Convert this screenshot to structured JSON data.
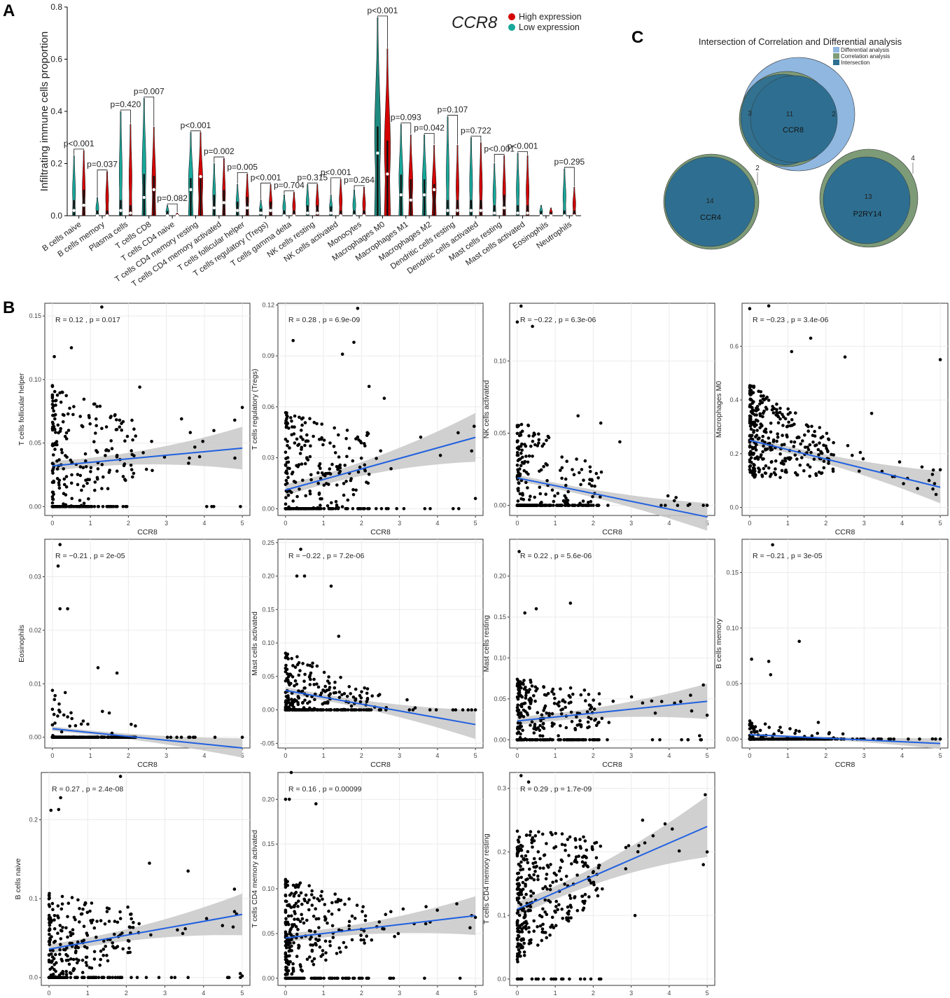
{
  "panels": {
    "a": "A",
    "b": "B",
    "c": "C"
  },
  "colors": {
    "high": "#d40000",
    "low": "#17a89a",
    "low_mo": "#1f8a80",
    "fit": "#2060e0",
    "band": "#c8c8c8",
    "venn_green": "#7d9b77",
    "venn_blue": "#2e6f91",
    "venn_light": "#8fb7e0"
  },
  "chart_data": [
    {
      "id": "violin",
      "type": "violin",
      "ylabel": "Infiltrating immune cells proportion",
      "ylim": [
        0,
        0.8
      ],
      "yticks": [
        0.0,
        0.2,
        0.4,
        0.6,
        0.8
      ],
      "ytick_labels": [
        "0.0",
        "0.2",
        "0.4",
        "0.6",
        "0.8"
      ],
      "legend": {
        "gene": "CCR8",
        "high": "High expression",
        "low": "Low expression",
        "position": "top-right"
      },
      "categories": [
        "B cells naive",
        "B cells memory",
        "Plasma cells",
        "T cells CD8",
        "T cells CD4 naive",
        "T cells CD4 memory resting",
        "T cells CD4 memory activated",
        "T cells follicular helper",
        "T cells regulatory (Tregs)",
        "T cells gamma delta",
        "NK cells resting",
        "NK cells activated",
        "Monocytes",
        "Macrophages M0",
        "Macrophages M1",
        "Macrophages M2",
        "Dendritic cells resting",
        "Dendritic cells activated",
        "Mast cells resting",
        "Mast cells activated",
        "Eosinophils",
        "Neutrophils"
      ],
      "pvalues": [
        "p<0.001",
        "p=0.037",
        "p=0.420",
        "p=0.007",
        "p=0.082",
        "p<0.001",
        "p=0.002",
        "p=0.005",
        "p<0.001",
        "p=0.704",
        "p=0.315",
        "p<0.001",
        "p=0.264",
        "p<0.001",
        "p=0.093",
        "p=0.042",
        "p=0.107",
        "p=0.722",
        "p<0.001",
        "p<0.001",
        "",
        "p=0.295"
      ],
      "low_max": [
        0.23,
        0.07,
        0.4,
        0.45,
        0.04,
        0.32,
        0.2,
        0.12,
        0.06,
        0.08,
        0.12,
        0.08,
        0.1,
        0.76,
        0.35,
        0.31,
        0.38,
        0.3,
        0.2,
        0.24,
        0.04,
        0.18
      ],
      "high_max": [
        0.25,
        0.17,
        0.35,
        0.34,
        0.01,
        0.32,
        0.22,
        0.16,
        0.12,
        0.09,
        0.12,
        0.14,
        0.11,
        0.64,
        0.31,
        0.27,
        0.27,
        0.28,
        0.23,
        0.23,
        0.03,
        0.11
      ],
      "low_median": [
        0.02,
        0.0,
        0.02,
        0.07,
        0.0,
        0.1,
        0.03,
        0.02,
        0.01,
        0.0,
        0.01,
        0.01,
        0.0,
        0.24,
        0.08,
        0.08,
        0.02,
        0.02,
        0.01,
        0.01,
        0.0,
        0.0
      ],
      "high_median": [
        0.04,
        0.0,
        0.01,
        0.1,
        0.0,
        0.15,
        0.05,
        0.03,
        0.02,
        0.0,
        0.01,
        0.0,
        0.0,
        0.16,
        0.06,
        0.1,
        0.02,
        0.02,
        0.03,
        0.01,
        0.0,
        0.0
      ]
    },
    {
      "id": "scatter-tfh",
      "type": "scatter",
      "xlabel": "CCR8",
      "ylabel": "T cells follicular helper",
      "stat": "R = 0.12 , p = 0.017",
      "xlim": [
        -0.2,
        5.2
      ],
      "ylim": [
        -0.007,
        0.16
      ],
      "xticks": [
        0,
        1,
        2,
        3,
        4,
        5
      ],
      "xtick_labels": [
        "0",
        "1",
        "2",
        "3",
        "4",
        "5"
      ],
      "yticks": [
        0,
        0.05,
        0.1,
        0.15
      ],
      "ytick_labels": [
        "0.00",
        "0.05",
        "0.10",
        "0.15"
      ],
      "fit": {
        "y0": 0.032,
        "y1": 0.046,
        "se": 0.014
      },
      "n": 320,
      "zero_frac": 0.3,
      "y_scale": 0.048,
      "extra_points": [
        [
          1.3,
          0.157
        ],
        [
          0.5,
          0.125
        ],
        [
          0.05,
          0.118
        ],
        [
          2.3,
          0.094
        ],
        [
          3.4,
          0.069
        ],
        [
          4.8,
          0.068
        ],
        [
          5.0,
          0.078
        ],
        [
          4.95,
          0.0
        ]
      ]
    },
    {
      "id": "scatter-tregs",
      "type": "scatter",
      "xlabel": "CCR8",
      "ylabel": "T cells regulatory (Tregs)",
      "stat": "R = 0.28 , p = 6.9e-09",
      "xlim": [
        -0.2,
        5.2
      ],
      "ylim": [
        -0.004,
        0.121
      ],
      "xticks": [
        0,
        1,
        2,
        3,
        4,
        5
      ],
      "xtick_labels": [
        "0",
        "1",
        "2",
        "3",
        "4",
        "5"
      ],
      "yticks": [
        0,
        0.03,
        0.06,
        0.09,
        0.12
      ],
      "ytick_labels": [
        "0.00",
        "0.03",
        "0.06",
        "0.09",
        "0.12"
      ],
      "fit": {
        "y0": 0.011,
        "y1": 0.042,
        "se": 0.012
      },
      "n": 320,
      "zero_frac": 0.32,
      "y_scale": 0.035,
      "extra_points": [
        [
          1.9,
          0.118
        ],
        [
          0.2,
          0.099
        ],
        [
          1.8,
          0.098
        ],
        [
          1.5,
          0.091
        ],
        [
          2.2,
          0.072
        ],
        [
          2.6,
          0.065
        ],
        [
          4.9,
          0.034
        ],
        [
          2.7,
          0.0
        ],
        [
          5.0,
          0.006
        ]
      ]
    },
    {
      "id": "scatter-nk-activated",
      "type": "scatter",
      "xlabel": "CCR8",
      "ylabel": "NK cells activated",
      "stat": "R = −0.22 , p = 6.3e-06",
      "xlim": [
        -0.2,
        5.2
      ],
      "ylim": [
        -0.007,
        0.14
      ],
      "xticks": [
        0,
        1,
        2,
        3,
        4,
        5
      ],
      "xtick_labels": [
        "0",
        "1",
        "2",
        "3",
        "4",
        "5"
      ],
      "yticks": [
        0,
        0.05,
        0.1
      ],
      "ytick_labels": [
        "0.00",
        "0.05",
        "0.10"
      ],
      "fit": {
        "y0": 0.019,
        "y1": -0.008,
        "se": 0.008
      },
      "n": 320,
      "zero_frac": 0.45,
      "y_scale": 0.032,
      "extra_points": [
        [
          0.1,
          0.138
        ],
        [
          0.0,
          0.127
        ],
        [
          0.4,
          0.124
        ],
        [
          1.6,
          0.062
        ],
        [
          2.2,
          0.057
        ],
        [
          2.7,
          0.044
        ],
        [
          4.9,
          0.0
        ],
        [
          5.0,
          0.0
        ]
      ]
    },
    {
      "id": "scatter-macrophages-m0",
      "type": "scatter",
      "xlabel": "CCR8",
      "ylabel": "Macrophages M0",
      "stat": "R = −0.23 , p = 3.4e-06",
      "xlim": [
        -0.2,
        5.2
      ],
      "ylim": [
        -0.03,
        0.76
      ],
      "xticks": [
        0,
        1,
        2,
        3,
        4,
        5
      ],
      "xtick_labels": [
        "0",
        "1",
        "2",
        "3",
        "4",
        "5"
      ],
      "yticks": [
        0,
        0.2,
        0.4,
        0.6
      ],
      "ytick_labels": [
        "0.0",
        "0.2",
        "0.4",
        "0.6"
      ],
      "fit": {
        "y0": 0.25,
        "y1": 0.075,
        "se": 0.05
      },
      "n": 340,
      "zero_frac": 0.0,
      "y_scale": 0.16,
      "extra_points": [
        [
          0.0,
          0.74
        ],
        [
          0.5,
          0.75
        ],
        [
          1.1,
          0.58
        ],
        [
          1.6,
          0.63
        ],
        [
          2.5,
          0.56
        ],
        [
          3.2,
          0.35
        ],
        [
          5.0,
          0.55
        ],
        [
          5.0,
          0.14
        ]
      ]
    },
    {
      "id": "scatter-eosinophils",
      "type": "scatter",
      "xlabel": "CCR8",
      "ylabel": "Eosinophils",
      "stat": "R = −0.21 , p = 2e-05",
      "xlim": [
        -0.2,
        5.2
      ],
      "ylim": [
        -0.002,
        0.037
      ],
      "xticks": [
        0,
        1,
        2,
        3,
        4,
        5
      ],
      "xtick_labels": [
        "0",
        "1",
        "2",
        "3",
        "4",
        "5"
      ],
      "yticks": [
        0,
        0.01,
        0.02,
        0.03
      ],
      "ytick_labels": [
        "0.00",
        "0.01",
        "0.02",
        "0.03"
      ],
      "fit": {
        "y0": 0.0016,
        "y1": -0.002,
        "se": 0.0015
      },
      "n": 340,
      "zero_frac": 0.82,
      "y_scale": 0.006,
      "extra_points": [
        [
          0.2,
          0.036
        ],
        [
          0.15,
          0.032
        ],
        [
          0.4,
          0.024
        ],
        [
          0.2,
          0.024
        ],
        [
          1.2,
          0.013
        ],
        [
          1.7,
          0.012
        ],
        [
          5.0,
          0.0
        ]
      ]
    },
    {
      "id": "scatter-mast-activated",
      "type": "scatter",
      "xlabel": "CCR8",
      "ylabel": "Mast cells activated",
      "stat": "R = −0.22 , p = 7.2e-06",
      "xlim": [
        -0.2,
        5.2
      ],
      "ylim": [
        -0.057,
        0.255
      ],
      "xticks": [
        0,
        1,
        2,
        3,
        4,
        5
      ],
      "xtick_labels": [
        "0",
        "1",
        "2",
        "3",
        "4",
        "5"
      ],
      "yticks": [
        -0.05,
        0,
        0.05,
        0.1,
        0.15,
        0.2,
        0.25
      ],
      "ytick_labels": [
        "-0.05",
        "0.00",
        "0.05",
        "0.10",
        "0.15",
        "0.20",
        "0.25"
      ],
      "fit": {
        "y0": 0.029,
        "y1": -0.022,
        "se": 0.018
      },
      "n": 330,
      "zero_frac": 0.42,
      "y_scale": 0.045,
      "extra_points": [
        [
          0.4,
          0.24
        ],
        [
          0.3,
          0.2
        ],
        [
          0.5,
          0.2
        ],
        [
          1.2,
          0.185
        ],
        [
          1.4,
          0.11
        ],
        [
          3.2,
          0.015
        ],
        [
          4.9,
          0.0
        ],
        [
          5.0,
          0.0
        ]
      ]
    },
    {
      "id": "scatter-mast-resting",
      "type": "scatter",
      "xlabel": "CCR8",
      "ylabel": "Mast cells resting",
      "stat": "R = 0.22 , p = 5.6e-06",
      "xlim": [
        -0.2,
        5.2
      ],
      "ylim": [
        -0.01,
        0.245
      ],
      "xticks": [
        0,
        1,
        2,
        3,
        4,
        5
      ],
      "xtick_labels": [
        "0",
        "1",
        "2",
        "3",
        "4",
        "5"
      ],
      "yticks": [
        0,
        0.05,
        0.1,
        0.15,
        0.2
      ],
      "ytick_labels": [
        "0.00",
        "0.05",
        "0.10",
        "0.15",
        "0.20"
      ],
      "fit": {
        "y0": 0.023,
        "y1": 0.047,
        "se": 0.018
      },
      "n": 330,
      "zero_frac": 0.3,
      "y_scale": 0.04,
      "extra_points": [
        [
          0.05,
          0.23
        ],
        [
          0.2,
          0.155
        ],
        [
          0.5,
          0.16
        ],
        [
          1.4,
          0.167
        ],
        [
          3.3,
          0.045
        ],
        [
          4.9,
          0.067
        ],
        [
          5.0,
          0.03
        ],
        [
          4.8,
          0.005
        ]
      ]
    },
    {
      "id": "scatter-b-memory",
      "type": "scatter",
      "xlabel": "CCR8",
      "ylabel": "B cells memory",
      "stat": "R = −0.21 , p = 3e-05",
      "xlim": [
        -0.2,
        5.2
      ],
      "ylim": [
        -0.008,
        0.18
      ],
      "xticks": [
        0,
        1,
        2,
        3,
        4,
        5
      ],
      "xtick_labels": [
        "0",
        "1",
        "2",
        "3",
        "4",
        "5"
      ],
      "yticks": [
        0,
        0.05,
        0.1,
        0.15
      ],
      "ytick_labels": [
        "0.00",
        "0.05",
        "0.10",
        "0.15"
      ],
      "fit": {
        "y0": 0.004,
        "y1": -0.004,
        "se": 0.004
      },
      "n": 330,
      "zero_frac": 0.8,
      "y_scale": 0.01,
      "extra_points": [
        [
          0.6,
          0.175
        ],
        [
          1.3,
          0.088
        ],
        [
          0.05,
          0.072
        ],
        [
          0.5,
          0.07
        ],
        [
          0.55,
          0.058
        ],
        [
          1.8,
          0.015
        ],
        [
          5.0,
          0.0
        ]
      ]
    },
    {
      "id": "scatter-b-naive",
      "type": "scatter",
      "xlabel": "CCR8",
      "ylabel": "B cells naive",
      "stat": "R = 0.27 , p = 2.4e-08",
      "xlim": [
        -0.2,
        5.2
      ],
      "ylim": [
        -0.01,
        0.26
      ],
      "xticks": [
        0,
        1,
        2,
        3,
        4,
        5
      ],
      "xtick_labels": [
        "0",
        "1",
        "2",
        "3",
        "4",
        "5"
      ],
      "yticks": [
        0,
        0.1,
        0.2
      ],
      "ytick_labels": [
        "0.0",
        "0.1",
        "0.2"
      ],
      "fit": {
        "y0": 0.036,
        "y1": 0.08,
        "se": 0.022
      },
      "n": 330,
      "zero_frac": 0.3,
      "y_scale": 0.055,
      "extra_points": [
        [
          1.85,
          0.255
        ],
        [
          0.3,
          0.228
        ],
        [
          0.25,
          0.213
        ],
        [
          0.05,
          0.212
        ],
        [
          2.6,
          0.145
        ],
        [
          3.6,
          0.135
        ],
        [
          4.8,
          0.112
        ],
        [
          4.95,
          0.005
        ],
        [
          5.0,
          0.002
        ]
      ]
    },
    {
      "id": "scatter-cd4-activated",
      "type": "scatter",
      "xlabel": "CCR8",
      "ylabel": "T cells CD4 memory activated",
      "stat": "R = 0.16 , p = 0.00099",
      "xlim": [
        -0.2,
        5.2
      ],
      "ylim": [
        -0.008,
        0.23
      ],
      "xticks": [
        0,
        1,
        2,
        3,
        4,
        5
      ],
      "xtick_labels": [
        "0",
        "1",
        "2",
        "3",
        "4",
        "5"
      ],
      "yticks": [
        0,
        0.05,
        0.1,
        0.15,
        0.2
      ],
      "ytick_labels": [
        "0.00",
        "0.05",
        "0.10",
        "0.15",
        "0.20"
      ],
      "fit": {
        "y0": 0.045,
        "y1": 0.07,
        "se": 0.018
      },
      "n": 330,
      "zero_frac": 0.25,
      "y_scale": 0.05,
      "extra_points": [
        [
          0.15,
          0.23
        ],
        [
          0.0,
          0.2
        ],
        [
          0.1,
          0.2
        ],
        [
          0.8,
          0.195
        ],
        [
          3.7,
          0.08
        ],
        [
          4.9,
          0.07
        ],
        [
          5.0,
          0.068
        ]
      ]
    },
    {
      "id": "scatter-cd4-resting",
      "type": "scatter",
      "xlabel": "CCR8",
      "ylabel": "T cells CD4 memory resting",
      "stat": "R = 0.29 , p = 1.7e-09",
      "xlim": [
        -0.2,
        5.2
      ],
      "ylim": [
        -0.01,
        0.325
      ],
      "xticks": [
        0,
        1,
        2,
        3,
        4,
        5
      ],
      "xtick_labels": [
        "0",
        "1",
        "2",
        "3",
        "4",
        "5"
      ],
      "yticks": [
        0,
        0.1,
        0.2,
        0.3
      ],
      "ytick_labels": [
        "0.0",
        "0.1",
        "0.2",
        "0.3"
      ],
      "fit": {
        "y0": 0.11,
        "y1": 0.24,
        "se": 0.04
      },
      "n": 360,
      "zero_frac": 0.03,
      "y_scale": 0.095,
      "extra_points": [
        [
          0.1,
          0.32
        ],
        [
          0.3,
          0.31
        ],
        [
          4.95,
          0.29
        ],
        [
          5.0,
          0.2
        ],
        [
          4.9,
          0.18
        ],
        [
          3.3,
          0.25
        ],
        [
          3.2,
          0.21
        ],
        [
          3.1,
          0.1
        ],
        [
          2.2,
          0.0
        ]
      ]
    },
    {
      "id": "venn",
      "type": "venn",
      "title": "Intersection of Correlation and Differential analysis",
      "legend": [
        "Differential analysis",
        "Correlation analysis",
        "Intersection"
      ],
      "groups": [
        {
          "gene": "CCR8",
          "intersection": "11",
          "correlation_only": "3",
          "differential_only": "2"
        },
        {
          "gene": "CCR4",
          "intersection": "14",
          "correlation_only": "2"
        },
        {
          "gene": "P2RY14",
          "intersection": "13",
          "correlation_only": "4"
        }
      ]
    }
  ]
}
